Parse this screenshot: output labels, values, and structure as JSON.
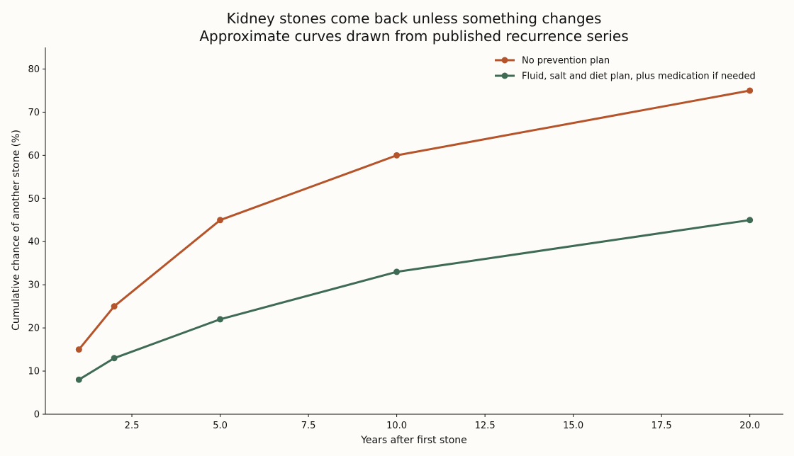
{
  "chart_data": {
    "type": "line",
    "title": "Kidney stones come back unless something changes",
    "subtitle": "Approximate curves drawn from published recurrence series",
    "xlabel": "Years after first stone",
    "ylabel": "Cumulative chance of another stone (%)",
    "x": [
      1,
      2,
      5,
      10,
      20
    ],
    "xlim": [
      0.05,
      20.95
    ],
    "ylim": [
      0,
      85
    ],
    "xticks": [
      2.5,
      5.0,
      7.5,
      10.0,
      12.5,
      15.0,
      17.5,
      20.0
    ],
    "xtick_labels": [
      "2.5",
      "5.0",
      "7.5",
      "10.0",
      "12.5",
      "15.0",
      "17.5",
      "20.0"
    ],
    "yticks": [
      0,
      10,
      20,
      30,
      40,
      50,
      60,
      70,
      80
    ],
    "ytick_labels": [
      "0",
      "10",
      "20",
      "30",
      "40",
      "50",
      "60",
      "70",
      "80"
    ],
    "grid": false,
    "legend": "top-right",
    "series": [
      {
        "name": "No prevention plan",
        "values": [
          15,
          25,
          45,
          60,
          75
        ],
        "color": "#b5542a"
      },
      {
        "name": "Fluid, salt and diet plan, plus medication if needed",
        "values": [
          8,
          13,
          22,
          33,
          45
        ],
        "color": "#3f6b55"
      }
    ]
  }
}
